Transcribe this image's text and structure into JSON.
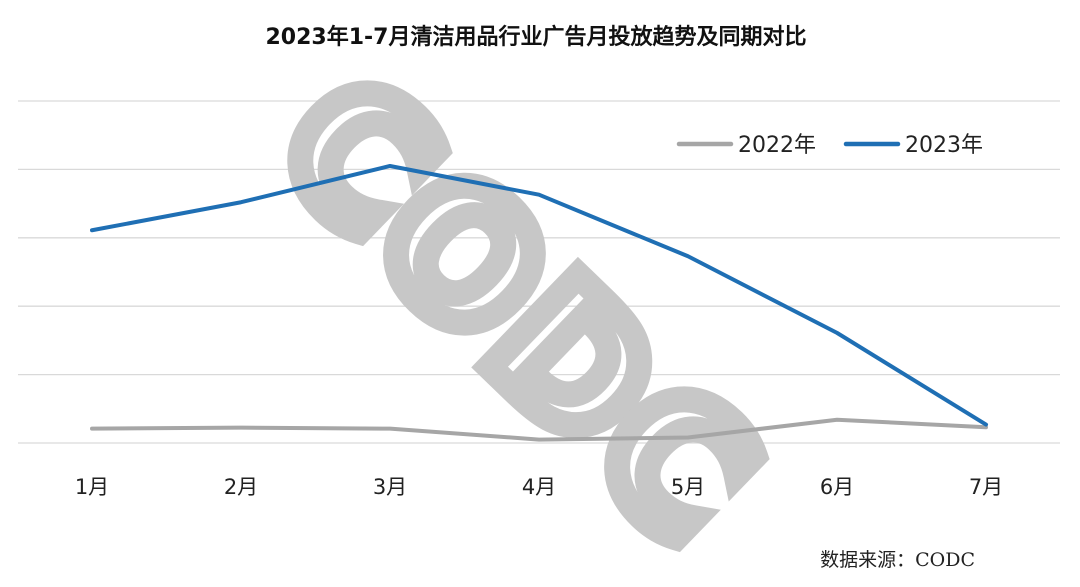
{
  "chart_data": {
    "type": "line",
    "title": "2023年1-7月清洁用品行业广告月投放趋势及同期对比",
    "categories": [
      "1月",
      "2月",
      "3月",
      "4月",
      "5月",
      "6月",
      "7月"
    ],
    "series": [
      {
        "name": "2022年",
        "values": [
          0.21,
          0.225,
          0.21,
          0.05,
          0.08,
          0.34,
          0.23
        ],
        "color": "#a6a6a6"
      },
      {
        "name": "2023年",
        "values": [
          3.11,
          3.52,
          4.05,
          3.63,
          2.73,
          1.61,
          0.27
        ],
        "color": "#1f6fb4"
      }
    ],
    "ylim": [
      0,
      5
    ],
    "y_gridlines": [
      0,
      1,
      2,
      3,
      4,
      5
    ],
    "y_tick_labels_shown": false,
    "grid": true,
    "legend": {
      "placement": "top-right",
      "orientation": "horizontal"
    },
    "xlabel": "",
    "ylabel": ""
  },
  "watermark": {
    "text": "CODC",
    "color": "#c7c7c7"
  },
  "source": "数据来源：CODC"
}
